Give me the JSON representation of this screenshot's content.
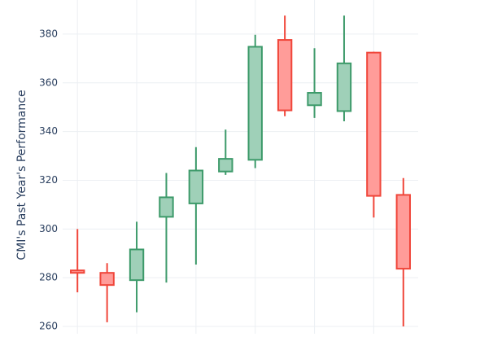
{
  "chart_data": {
    "type": "candlestick",
    "y_label": "CMI's Past Year's Performance",
    "x": [
      0,
      1,
      2,
      3,
      4,
      5,
      6,
      7,
      8,
      9,
      10,
      11
    ],
    "open": [
      283,
      282,
      279,
      305,
      310.5,
      323.6,
      328.4,
      377.6,
      350.8,
      348.4,
      372.4,
      314
    ],
    "high": [
      300,
      286,
      303,
      323,
      333.6,
      340.8,
      379.7,
      387.6,
      374.2,
      387.6,
      372.8,
      320.9
    ],
    "low": [
      274,
      261.7,
      265.8,
      278,
      285.4,
      322.2,
      325,
      346.3,
      345.6,
      344.2,
      304.7,
      260
    ],
    "close": [
      282,
      277,
      291.6,
      313,
      324,
      328.8,
      374.8,
      348.7,
      355.9,
      368,
      313.6,
      283.7
    ],
    "increasing_color": "#3d9a6a",
    "increasing_fill": "#9fd0b8",
    "decreasing_color": "#f0463a",
    "decreasing_fill": "#ff9c99",
    "xlim": [
      -0.5,
      11.5
    ],
    "xticks": [
      0,
      2,
      4,
      6,
      8,
      10
    ],
    "ylim": [
      257,
      394
    ],
    "yticks": [
      260,
      280,
      300,
      320,
      340,
      360,
      380
    ],
    "grid": true
  }
}
